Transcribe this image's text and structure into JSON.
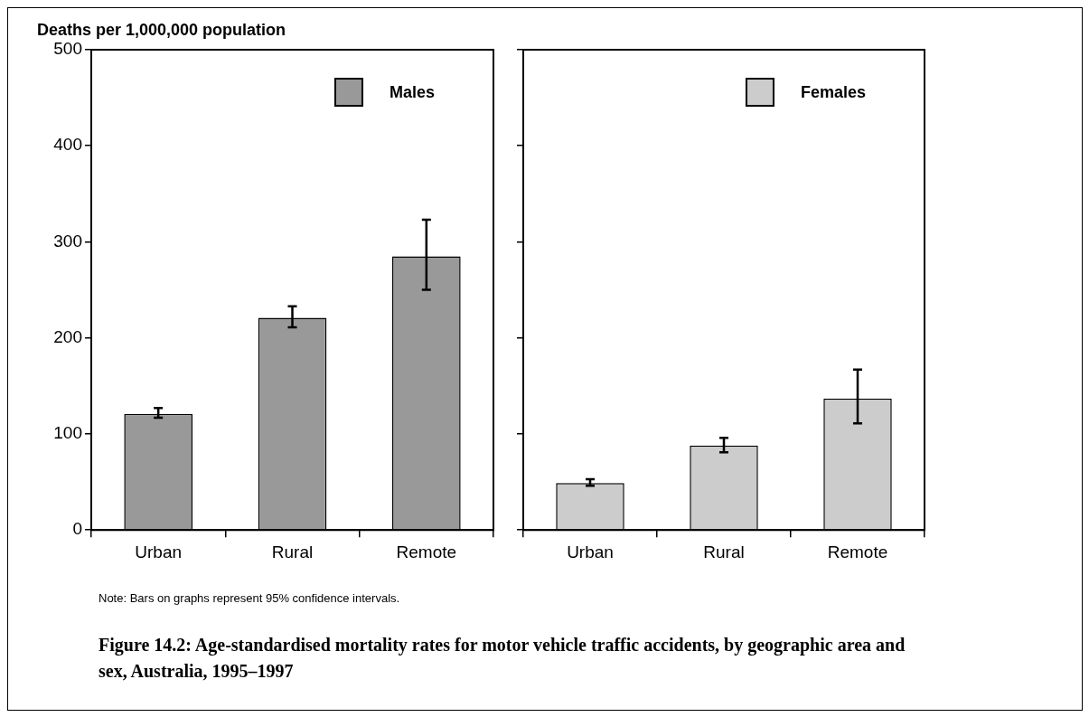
{
  "chart_data": [
    {
      "type": "bar",
      "title": "Figure 14.2: Age-standardised mortality rates for motor vehicle traffic accidents, by geographic area and sex, Australia, 1995–1997",
      "ylabel": "Deaths per 1,000,000 population",
      "annotations": [
        "Note: Bars on graphs represent 95% confidence intervals."
      ],
      "categories": [
        "Urban",
        "Rural",
        "Remote"
      ],
      "series": [
        {
          "name": "Males",
          "color": "#999999",
          "values": [
            121,
            221,
            285
          ],
          "errors": [
            [
              117,
              127
            ],
            [
              211,
              233
            ],
            [
              250,
              323
            ]
          ]
        }
      ],
      "ylim": [
        0,
        500
      ],
      "yticks": [
        0,
        100,
        200,
        300,
        400,
        500
      ],
      "grid": false,
      "legend": "top right"
    },
    {
      "type": "bar",
      "categories": [
        "Urban",
        "Rural",
        "Remote"
      ],
      "series": [
        {
          "name": "Females",
          "color": "#cccccc",
          "values": [
            49,
            88,
            137
          ],
          "errors": [
            [
              46,
              53
            ],
            [
              81,
              96
            ],
            [
              111,
              167
            ]
          ]
        }
      ],
      "ylim": [
        0,
        500
      ],
      "yticks": [
        0,
        100,
        200,
        300,
        400,
        500
      ],
      "grid": false,
      "legend": "top right",
      "tick_labels": "x"
    }
  ]
}
